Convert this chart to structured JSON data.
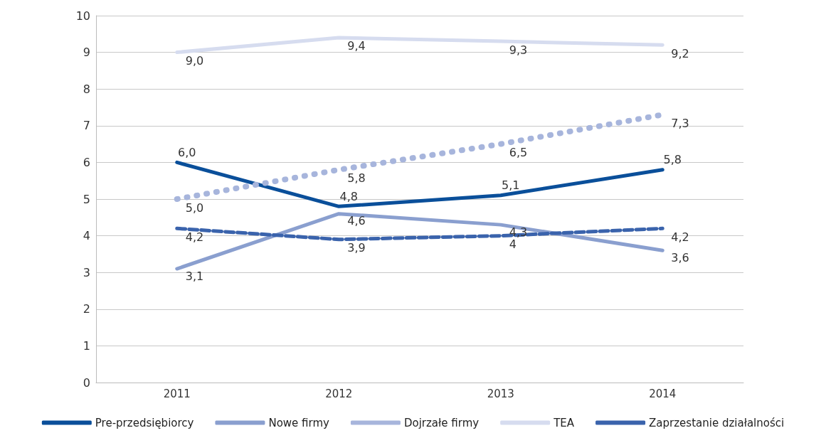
{
  "chart_data": {
    "type": "line",
    "categories": [
      "2011",
      "2012",
      "2013",
      "2014"
    ],
    "series": [
      {
        "name": "Pre-przedsiębiorcy",
        "color": "#0a4f9a",
        "line_style": "solid",
        "values": [
          6.0,
          4.8,
          5.1,
          5.8
        ],
        "value_labels": [
          "6,0",
          "4,8",
          "5,1",
          "5,8"
        ]
      },
      {
        "name": "Nowe firmy",
        "color": "#8a9fcf",
        "line_style": "solid",
        "values": [
          3.1,
          4.6,
          4.3,
          3.6
        ],
        "value_labels": [
          "3,1",
          "4,6",
          "4,3",
          "3,6"
        ]
      },
      {
        "name": "Dojrzałe firmy",
        "color": "#a7b5dc",
        "line_style": "dotted",
        "values": [
          5.0,
          5.8,
          6.5,
          7.3
        ],
        "value_labels": [
          "5,0",
          "5,8",
          "6,5",
          "7,3"
        ]
      },
      {
        "name": "TEA",
        "color": "#d6dcef",
        "line_style": "solid",
        "values": [
          9.0,
          9.4,
          9.3,
          9.2
        ],
        "value_labels": [
          "9,0",
          "9,4",
          "9,3",
          "9,2"
        ]
      },
      {
        "name": "Zaprzestanie działalności",
        "color": "#3a63ac",
        "line_style": "dashed",
        "values": [
          4.2,
          3.9,
          4.0,
          4.2
        ],
        "value_labels": [
          "4,2",
          "3,9",
          "4",
          "4,2"
        ]
      }
    ],
    "ylim": [
      0,
      10
    ],
    "yticks": [
      0,
      1,
      2,
      3,
      4,
      5,
      6,
      7,
      8,
      9,
      10
    ],
    "grid": "y",
    "legend": "bottom",
    "marker": "none"
  }
}
